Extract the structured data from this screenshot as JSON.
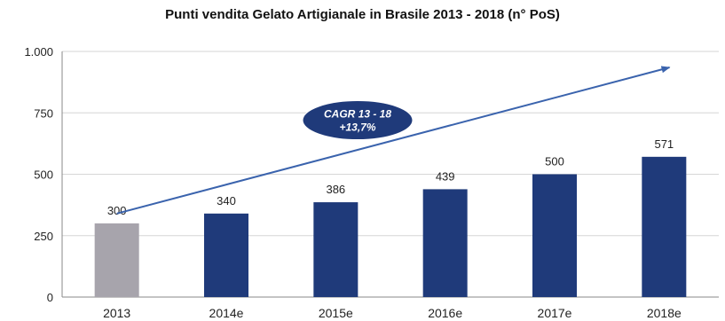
{
  "chart_data": {
    "type": "bar",
    "title": "Punti vendita Gelato Artigianale in Brasile 2013 - 2018 (n° PoS)",
    "xlabel": "",
    "ylabel": "",
    "categories": [
      "2013",
      "2014e",
      "2015e",
      "2016e",
      "2017e",
      "2018e"
    ],
    "values": [
      300,
      340,
      386,
      439,
      500,
      571
    ],
    "value_labels": [
      "300",
      "340",
      "386",
      "439",
      "500",
      "571"
    ],
    "ylim": [
      0,
      1000
    ],
    "yticks": [
      0,
      250,
      500,
      750,
      1000
    ],
    "ytick_labels": [
      "0",
      "250",
      "500",
      "750",
      "1.000"
    ],
    "grid": true,
    "bar_colors": [
      "#a7a4ac",
      "#1f3a7a",
      "#1f3a7a",
      "#1f3a7a",
      "#1f3a7a",
      "#1f3a7a"
    ],
    "annotation": {
      "line1": "CAGR 13 - 18",
      "line2": "+13,7%",
      "fill": "#1f3a7a",
      "arrow_color": "#3a63ad"
    }
  }
}
